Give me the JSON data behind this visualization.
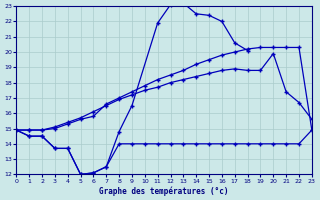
{
  "title": "Graphe des températures (°c)",
  "background_color": "#cce8e8",
  "grid_color": "#aacccc",
  "line_color": "#0000bb",
  "ylim": [
    12,
    23
  ],
  "xlim": [
    0,
    23
  ],
  "yticks": [
    12,
    13,
    14,
    15,
    16,
    17,
    18,
    19,
    20,
    21,
    22,
    23
  ],
  "xticks": [
    0,
    1,
    2,
    3,
    4,
    5,
    6,
    7,
    8,
    9,
    10,
    11,
    12,
    13,
    14,
    15,
    16,
    17,
    18,
    19,
    20,
    21,
    22,
    23
  ],
  "line1_x": [
    0,
    1,
    2,
    3,
    4,
    5,
    6,
    7,
    8,
    9,
    11,
    12,
    13,
    14,
    15,
    16,
    17,
    18
  ],
  "line1_y": [
    14.9,
    14.5,
    14.5,
    13.7,
    13.7,
    12.0,
    12.1,
    12.5,
    14.8,
    16.5,
    21.9,
    23.1,
    23.2,
    22.5,
    22.4,
    22.0,
    20.6,
    20.1
  ],
  "line2_x": [
    0,
    1,
    2,
    3,
    4,
    5,
    6,
    7,
    8,
    9,
    10,
    11,
    12,
    13,
    14,
    15,
    16,
    17,
    18,
    19,
    20,
    21,
    22,
    23
  ],
  "line2_y": [
    14.9,
    14.5,
    14.5,
    13.7,
    13.7,
    12.0,
    12.1,
    12.5,
    14.0,
    14.0,
    14.0,
    14.0,
    14.0,
    14.0,
    14.0,
    14.0,
    14.0,
    14.0,
    14.0,
    14.0,
    14.0,
    14.0,
    14.0,
    14.9
  ],
  "line3_x": [
    0,
    1,
    2,
    3,
    4,
    5,
    6,
    7,
    8,
    9,
    10,
    11,
    12,
    13,
    14,
    15,
    16,
    17,
    18,
    19,
    20,
    21,
    22,
    23
  ],
  "line3_y": [
    14.9,
    14.9,
    14.9,
    15.0,
    15.3,
    15.6,
    15.8,
    16.6,
    17.0,
    17.4,
    17.8,
    18.2,
    18.5,
    18.8,
    19.2,
    19.5,
    19.8,
    20.0,
    20.2,
    20.3,
    20.3,
    20.3,
    20.3,
    14.9
  ],
  "line4_x": [
    0,
    1,
    2,
    3,
    4,
    5,
    6,
    7,
    8,
    9,
    10,
    11,
    12,
    13,
    14,
    15,
    16,
    17,
    18,
    19,
    20,
    21,
    22,
    23
  ],
  "line4_y": [
    14.9,
    14.9,
    14.9,
    15.1,
    15.4,
    15.7,
    16.1,
    16.5,
    16.9,
    17.2,
    17.5,
    17.7,
    18.0,
    18.2,
    18.4,
    18.6,
    18.8,
    18.9,
    18.8,
    18.8,
    19.9,
    17.4,
    16.7,
    15.6
  ]
}
